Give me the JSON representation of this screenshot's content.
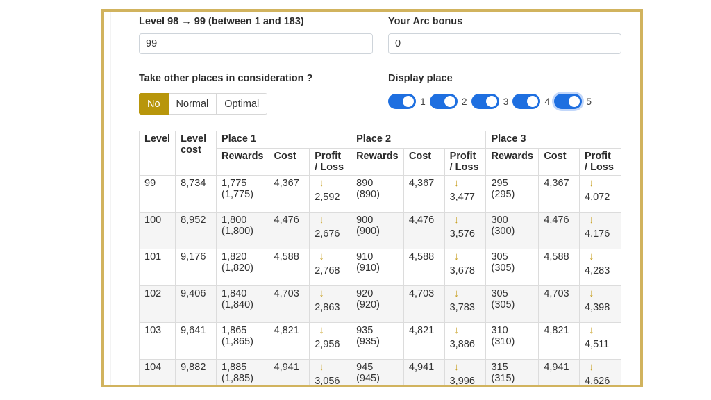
{
  "level_field": {
    "label": "Level 98 → 99 (between 1 and 183)",
    "value": "99"
  },
  "arc_field": {
    "label": "Your Arc bonus",
    "value": "0"
  },
  "consideration": {
    "label": "Take other places in consideration ?",
    "options": [
      "No",
      "Normal",
      "Optimal"
    ],
    "selected": "No"
  },
  "display_place": {
    "label": "Display place",
    "toggles": [
      "1",
      "2",
      "3",
      "4",
      "5"
    ]
  },
  "colors": {
    "accent": "#b8960b",
    "toggle": "#1e6fe0",
    "frame": "#d1b35e"
  },
  "table": {
    "headers": {
      "level": "Level",
      "level_cost": "Level cost",
      "places": [
        "Place 1",
        "Place 2",
        "Place 3"
      ],
      "rewards": "Rewards",
      "cost": "Cost",
      "profit_loss": "Profit / Loss"
    },
    "arrow_icon": "↓",
    "rows": [
      {
        "level": "99",
        "cost": "8,734",
        "p": [
          [
            "1,775",
            "(1,775)",
            "4,367",
            "2,592"
          ],
          [
            "890",
            "(890)",
            "4,367",
            "3,477"
          ],
          [
            "295",
            "(295)",
            "4,367",
            "4,072"
          ]
        ]
      },
      {
        "level": "100",
        "cost": "8,952",
        "p": [
          [
            "1,800",
            "(1,800)",
            "4,476",
            "2,676"
          ],
          [
            "900",
            "(900)",
            "4,476",
            "3,576"
          ],
          [
            "300",
            "(300)",
            "4,476",
            "4,176"
          ]
        ]
      },
      {
        "level": "101",
        "cost": "9,176",
        "p": [
          [
            "1,820",
            "(1,820)",
            "4,588",
            "2,768"
          ],
          [
            "910",
            "(910)",
            "4,588",
            "3,678"
          ],
          [
            "305",
            "(305)",
            "4,588",
            "4,283"
          ]
        ]
      },
      {
        "level": "102",
        "cost": "9,406",
        "p": [
          [
            "1,840",
            "(1,840)",
            "4,703",
            "2,863"
          ],
          [
            "920",
            "(920)",
            "4,703",
            "3,783"
          ],
          [
            "305",
            "(305)",
            "4,703",
            "4,398"
          ]
        ]
      },
      {
        "level": "103",
        "cost": "9,641",
        "p": [
          [
            "1,865",
            "(1,865)",
            "4,821",
            "2,956"
          ],
          [
            "935",
            "(935)",
            "4,821",
            "3,886"
          ],
          [
            "310",
            "(310)",
            "4,821",
            "4,511"
          ]
        ]
      },
      {
        "level": "104",
        "cost": "9,882",
        "p": [
          [
            "1,885",
            "(1,885)",
            "4,941",
            "3,056"
          ],
          [
            "945",
            "(945)",
            "4,941",
            "3,996"
          ],
          [
            "315",
            "(315)",
            "4,941",
            "4,626"
          ]
        ]
      }
    ]
  }
}
